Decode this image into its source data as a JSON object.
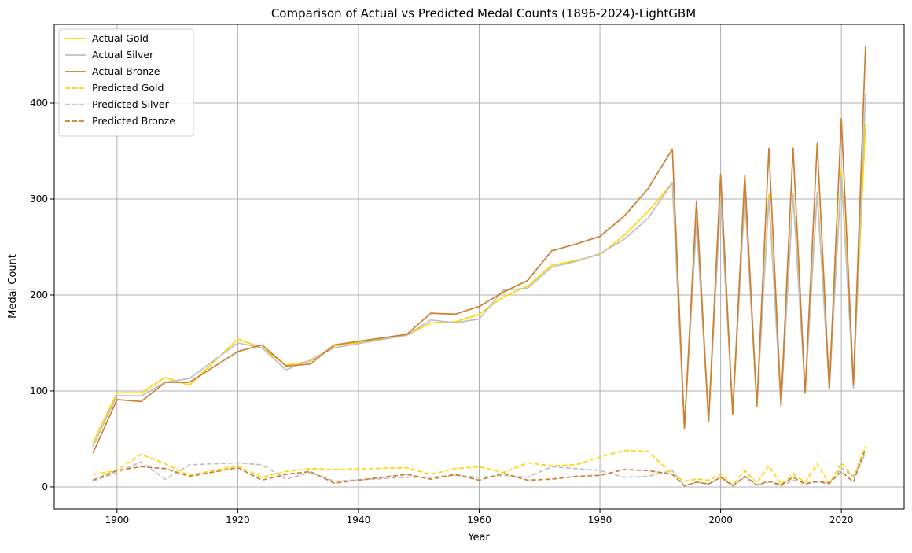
{
  "chart_data": {
    "type": "line",
    "title": "Comparison of Actual vs Predicted Medal Counts (1896-2024)-LightGBM",
    "xlabel": "Year",
    "ylabel": "Medal Count",
    "xlim": [
      1889.6,
      2030.4
    ],
    "ylim": [
      -23,
      482
    ],
    "xticks": [
      1900,
      1920,
      1940,
      1960,
      1980,
      2000,
      2020
    ],
    "yticks": [
      0,
      100,
      200,
      300,
      400
    ],
    "grid": true,
    "legend_position": "top-left",
    "x": [
      1896,
      1900,
      1904,
      1908,
      1912,
      1920,
      1924,
      1928,
      1932,
      1936,
      1948,
      1952,
      1956,
      1960,
      1964,
      1968,
      1972,
      1976,
      1980,
      1984,
      1988,
      1992,
      1994,
      1996,
      1998,
      2000,
      2002,
      2004,
      2006,
      2008,
      2010,
      2012,
      2014,
      2016,
      2018,
      2020,
      2022,
      2024
    ],
    "series": [
      {
        "name": "Actual Gold",
        "color": "#FFD700",
        "dash": "solid",
        "values": [
          46,
          98,
          98,
          114,
          106,
          154,
          145,
          127,
          131,
          147,
          158,
          171,
          172,
          180,
          198,
          209,
          231,
          236,
          242,
          262,
          287,
          317,
          61,
          280,
          68,
          302,
          78,
          304,
          85,
          305,
          86,
          306,
          99,
          307,
          103,
          330,
          109,
          378
        ]
      },
      {
        "name": "Actual Silver",
        "color": "#C0C0C0",
        "dash": "solid",
        "values": [
          42,
          95,
          95,
          109,
          113,
          150,
          145,
          122,
          132,
          145,
          158,
          174,
          171,
          175,
          205,
          207,
          229,
          235,
          243,
          258,
          280,
          317,
          62,
          276,
          68,
          300,
          77,
          303,
          84,
          301,
          84,
          304,
          98,
          307,
          102,
          325,
          103,
          409
        ]
      },
      {
        "name": "Actual Bronze",
        "color": "#CD7F32",
        "dash": "solid",
        "values": [
          35,
          91,
          89,
          109,
          109,
          141,
          148,
          126,
          128,
          148,
          159,
          181,
          180,
          188,
          203,
          215,
          246,
          253,
          261,
          282,
          311,
          352,
          61,
          298,
          68,
          326,
          76,
          325,
          84,
          353,
          85,
          353,
          98,
          358,
          102,
          384,
          106,
          459
        ]
      },
      {
        "name": "Predicted Gold",
        "color": "#FFD700",
        "dash": "dashed",
        "values": [
          13,
          17,
          34,
          24,
          12,
          22,
          10,
          16,
          19,
          18,
          20,
          13,
          19,
          21,
          15,
          25,
          22,
          23,
          31,
          38,
          37,
          13,
          6,
          8,
          7,
          13,
          2,
          17,
          4,
          22,
          3,
          13,
          5,
          24,
          3,
          25,
          10,
          42
        ]
      },
      {
        "name": "Predicted Silver",
        "color": "#C0C0C0",
        "dash": "dashed",
        "values": [
          6,
          15,
          26,
          8,
          23,
          25,
          23,
          8,
          15,
          6,
          10,
          10,
          12,
          10,
          12,
          10,
          21,
          19,
          17,
          10,
          11,
          17,
          1,
          5,
          3,
          10,
          2,
          10,
          2,
          5,
          1,
          7,
          4,
          5,
          3,
          20,
          11,
          35
        ]
      },
      {
        "name": "Predicted Bronze",
        "color": "#CD7F32",
        "dash": "dashed",
        "values": [
          7,
          17,
          21,
          19,
          11,
          20,
          7,
          13,
          16,
          4,
          13,
          8,
          13,
          7,
          14,
          7,
          8,
          11,
          12,
          18,
          17,
          13,
          1,
          5,
          3,
          10,
          1,
          11,
          2,
          6,
          2,
          10,
          3,
          6,
          4,
          16,
          5,
          40
        ]
      }
    ]
  }
}
